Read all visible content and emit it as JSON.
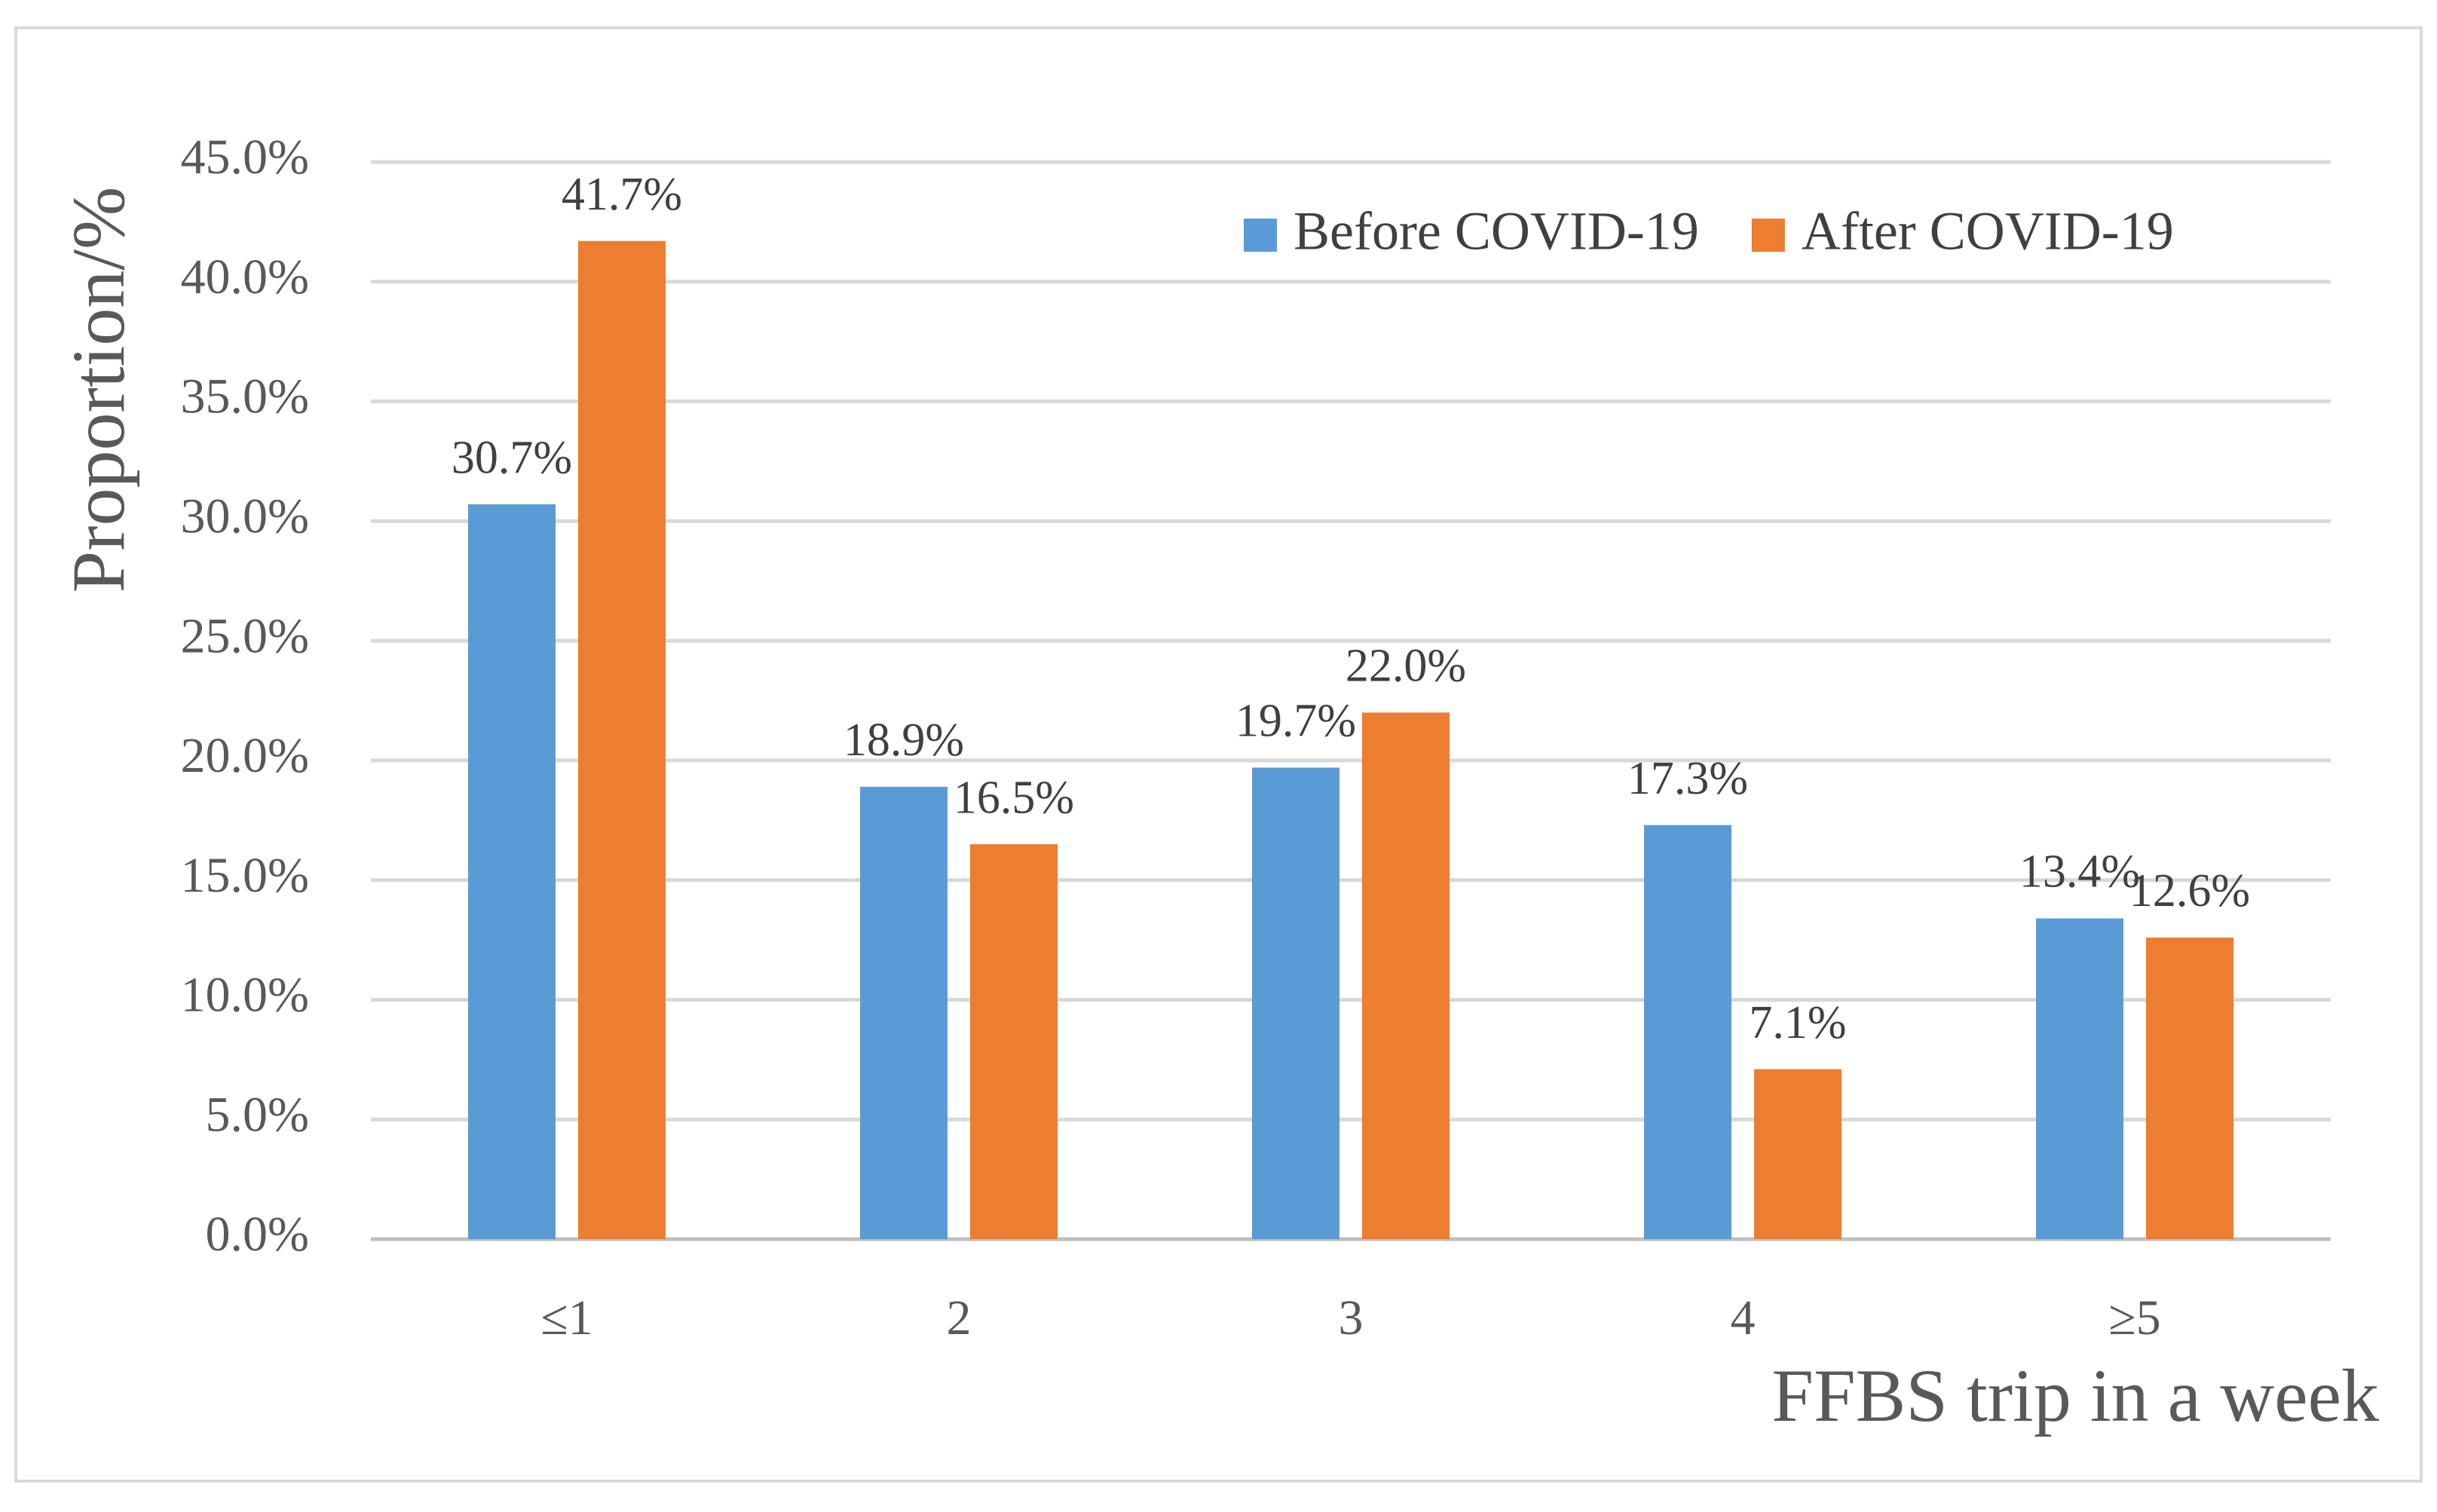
{
  "chart_data": {
    "type": "bar",
    "y_label": "Proportion/%",
    "x_label": "FFBS trip in a week",
    "categories": [
      "≤1",
      "2",
      "3",
      "4",
      "≥5"
    ],
    "series": [
      {
        "name": "Before COVID-19",
        "color": "#5b9bd5",
        "values": [
          30.7,
          18.9,
          19.7,
          17.3,
          13.4
        ],
        "value_labels": [
          "30.7%",
          "18.9%",
          "19.7%",
          "17.3%",
          "13.4%"
        ]
      },
      {
        "name": "After COVID-19",
        "color": "#ed7d31",
        "values": [
          41.7,
          16.5,
          22.0,
          7.1,
          12.6
        ],
        "value_labels": [
          "41.7%",
          "16.5%",
          "22.0%",
          "7.1%",
          "12.6%"
        ]
      }
    ],
    "ylim": [
      0,
      45
    ],
    "yticks": [
      {
        "value": 0,
        "label": "0.0%"
      },
      {
        "value": 5,
        "label": "5.0%"
      },
      {
        "value": 10,
        "label": "10.0%"
      },
      {
        "value": 15,
        "label": "15.0%"
      },
      {
        "value": 20,
        "label": "20.0%"
      },
      {
        "value": 25,
        "label": "25.0%"
      },
      {
        "value": 30,
        "label": "30.0%"
      },
      {
        "value": 35,
        "label": "35.0%"
      },
      {
        "value": 40,
        "label": "40.0%"
      },
      {
        "value": 45,
        "label": "45.0%"
      }
    ],
    "grid": true,
    "legend": "top-right"
  }
}
